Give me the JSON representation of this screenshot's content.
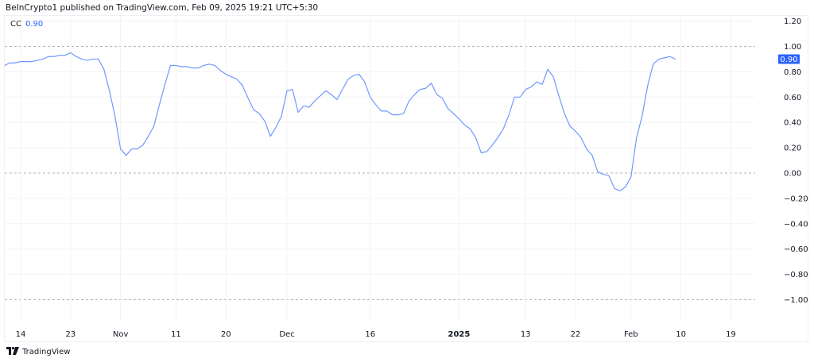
{
  "header": {
    "text": "BeInCrypto1 published on TradingView.com, Feb 09, 2025 19:21 UTC+5:30"
  },
  "legend": {
    "name": "CC",
    "value": "0.90"
  },
  "footer": {
    "brand": "TradingView",
    "logo_text": "TV"
  },
  "colors": {
    "line": "#6f98ff",
    "badge": "#2962ff",
    "grid": "#f2f3f5",
    "dashed": "#b2b5be"
  },
  "chart_data": {
    "type": "line",
    "title": "",
    "series": [
      {
        "start_date": "2024-10-10",
        "end_date": "2025-02-09",
        "interval": "1D",
        "values": [
          0.85,
          0.85,
          0.87,
          0.87,
          0.88,
          0.88,
          0.88,
          0.89,
          0.9,
          0.92,
          0.92,
          0.93,
          0.93,
          0.95,
          0.92,
          0.9,
          0.89,
          0.9,
          0.9,
          0.82,
          0.65,
          0.45,
          0.19,
          0.14,
          0.19,
          0.19,
          0.22,
          0.29,
          0.37,
          0.54,
          0.7,
          0.85,
          0.85,
          0.84,
          0.84,
          0.83,
          0.83,
          0.85,
          0.86,
          0.85,
          0.81,
          0.78,
          0.76,
          0.74,
          0.69,
          0.59,
          0.5,
          0.47,
          0.41,
          0.29,
          0.36,
          0.45,
          0.65,
          0.66,
          0.48,
          0.53,
          0.52,
          0.57,
          0.61,
          0.65,
          0.62,
          0.58,
          0.66,
          0.74,
          0.77,
          0.78,
          0.72,
          0.6,
          0.54,
          0.49,
          0.49,
          0.46,
          0.46,
          0.47,
          0.57,
          0.62,
          0.66,
          0.67,
          0.71,
          0.62,
          0.59,
          0.51,
          0.47,
          0.43,
          0.38,
          0.35,
          0.28,
          0.16,
          0.17,
          0.22,
          0.28,
          0.35,
          0.46,
          0.6,
          0.6,
          0.66,
          0.68,
          0.72,
          0.7,
          0.82,
          0.76,
          0.61,
          0.47,
          0.37,
          0.33,
          0.28,
          0.19,
          0.14,
          0.01,
          -0.01,
          -0.02,
          -0.12,
          -0.14,
          -0.11,
          -0.03,
          0.28,
          0.45,
          0.69,
          0.86,
          0.9,
          0.91,
          0.92,
          0.9
        ]
      }
    ],
    "last_value_label": "0.90",
    "ylim": [
      -1.2,
      1.2
    ],
    "yticks": [
      "1.20",
      "1.00",
      "0.80",
      "0.60",
      "0.40",
      "0.20",
      "0.00",
      "−0.20",
      "−0.40",
      "−0.60",
      "−0.80",
      "−1.00"
    ],
    "yticks_values": [
      1.2,
      1.0,
      0.8,
      0.6,
      0.4,
      0.2,
      0.0,
      -0.2,
      -0.4,
      -0.6,
      -0.8,
      -1.0
    ],
    "dashed_levels": [
      1.0,
      0.0,
      -1.0
    ],
    "xticks": [
      {
        "label": "14",
        "date": "2024-10-14"
      },
      {
        "label": "23",
        "date": "2024-10-23"
      },
      {
        "label": "Nov",
        "date": "2024-11-01"
      },
      {
        "label": "11",
        "date": "2024-11-11"
      },
      {
        "label": "20",
        "date": "2024-11-20"
      },
      {
        "label": "Dec",
        "date": "2024-12-01"
      },
      {
        "label": "16",
        "date": "2024-12-16"
      },
      {
        "label": "2025",
        "date": "2025-01-01",
        "bold": true
      },
      {
        "label": "13",
        "date": "2025-01-13"
      },
      {
        "label": "22",
        "date": "2025-01-22"
      },
      {
        "label": "Feb",
        "date": "2025-02-01"
      },
      {
        "label": "10",
        "date": "2025-02-10"
      },
      {
        "label": "19",
        "date": "2025-02-19"
      }
    ],
    "grid": true,
    "xlabel": "",
    "ylabel": ""
  }
}
